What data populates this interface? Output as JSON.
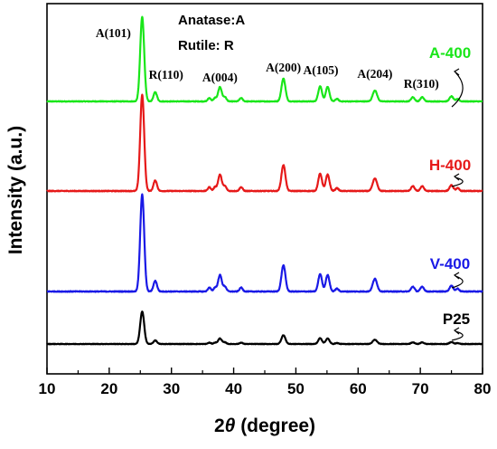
{
  "chart_data": {
    "type": "line",
    "xlabel_prefix": "2",
    "xlabel_theta": "θ",
    "xlabel_suffix": " (degree)",
    "ylabel": "Intensity (a.u.)",
    "xlim": [
      10,
      80
    ],
    "x_ticks": [
      10,
      20,
      30,
      40,
      50,
      60,
      70,
      80
    ],
    "legend_lines": [
      "Anatase:A",
      "Rutile: R"
    ],
    "peak_labels": [
      {
        "text": "A(101)",
        "x": 25.3
      },
      {
        "text": "R(110)",
        "x": 27.4
      },
      {
        "text": "A(004)",
        "x": 37.8
      },
      {
        "text": "A(200)",
        "x": 48.0
      },
      {
        "text": "A(105)",
        "x": 54.0
      },
      {
        "text": "A(204)",
        "x": 62.7
      },
      {
        "text": "R(310)",
        "x": 69.0
      }
    ],
    "peaks": [
      {
        "x": 25.3,
        "w": 0.32,
        "h": 1.0
      },
      {
        "x": 27.4,
        "w": 0.28,
        "h": 0.11
      },
      {
        "x": 36.1,
        "w": 0.25,
        "h": 0.04
      },
      {
        "x": 37.0,
        "w": 0.22,
        "h": 0.04
      },
      {
        "x": 37.8,
        "w": 0.3,
        "h": 0.17
      },
      {
        "x": 38.6,
        "w": 0.25,
        "h": 0.05
      },
      {
        "x": 41.2,
        "w": 0.25,
        "h": 0.04
      },
      {
        "x": 48.0,
        "w": 0.32,
        "h": 0.27
      },
      {
        "x": 53.9,
        "w": 0.3,
        "h": 0.18
      },
      {
        "x": 55.1,
        "w": 0.3,
        "h": 0.17
      },
      {
        "x": 56.6,
        "w": 0.25,
        "h": 0.03
      },
      {
        "x": 62.7,
        "w": 0.35,
        "h": 0.13
      },
      {
        "x": 68.8,
        "w": 0.28,
        "h": 0.05
      },
      {
        "x": 70.3,
        "w": 0.28,
        "h": 0.05
      },
      {
        "x": 75.0,
        "w": 0.3,
        "h": 0.06
      },
      {
        "x": 76.0,
        "w": 0.25,
        "h": 0.03
      }
    ],
    "series": [
      {
        "name": "A-400",
        "color": "#19e619",
        "peak_height": 0.86,
        "noise": 0.004
      },
      {
        "name": "H-400",
        "color": "#e61919",
        "peak_height": 0.98,
        "noise": 0.004
      },
      {
        "name": "V-400",
        "color": "#1919e6",
        "peak_height": 0.99,
        "noise": 0.004
      },
      {
        "name": "P25",
        "color": "#000000",
        "peak_height": 0.33,
        "noise": 0.008
      }
    ]
  }
}
